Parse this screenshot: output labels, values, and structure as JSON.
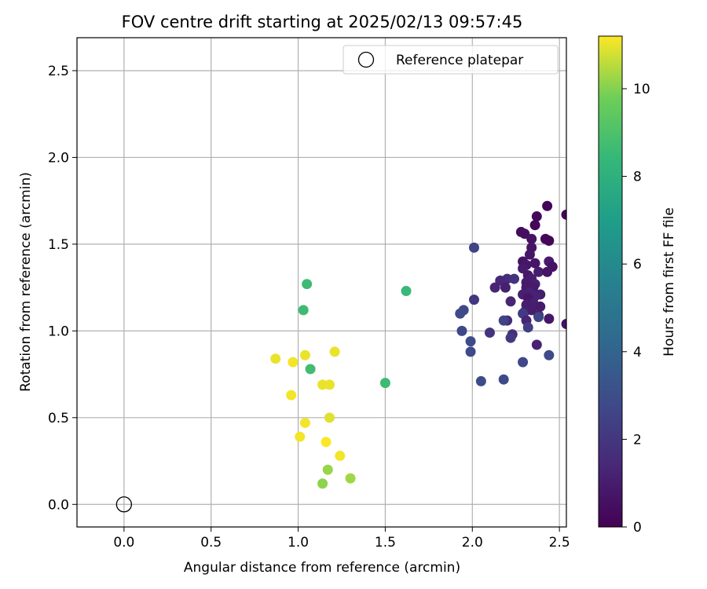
{
  "chart_data": {
    "type": "scatter",
    "title": "FOV centre drift starting at 2025/02/13 09:57:45",
    "xlabel": "Angular distance from reference (arcmin)",
    "ylabel": "Rotation from reference (arcmin)",
    "xlim": [
      -0.27,
      2.54
    ],
    "ylim": [
      -0.13,
      2.69
    ],
    "xticks": [
      "0.0",
      "0.5",
      "1.0",
      "1.5",
      "2.0",
      "2.5"
    ],
    "yticks": [
      "0.0",
      "0.5",
      "1.0",
      "1.5",
      "2.0",
      "2.5"
    ],
    "grid": true,
    "legend": {
      "placement": "top-right",
      "entries": [
        "Reference platepar"
      ]
    },
    "reference_point": {
      "x": 0.0,
      "y": 0.0,
      "marker": "open-circle"
    },
    "colorbar": {
      "label": "Hours from first FF file",
      "range": [
        0,
        11.2
      ],
      "ticks": [
        "0",
        "2",
        "4",
        "6",
        "8",
        "10"
      ],
      "colormap": "viridis"
    },
    "points": [
      {
        "x": 2.43,
        "y": 1.72,
        "c": 0.1
      },
      {
        "x": 2.54,
        "y": 1.67,
        "c": 0.2
      },
      {
        "x": 2.37,
        "y": 1.66,
        "c": 0.3
      },
      {
        "x": 2.36,
        "y": 1.61,
        "c": 0.2
      },
      {
        "x": 2.28,
        "y": 1.57,
        "c": 0.4
      },
      {
        "x": 2.3,
        "y": 1.56,
        "c": 0.5
      },
      {
        "x": 2.34,
        "y": 1.53,
        "c": 0.6
      },
      {
        "x": 2.42,
        "y": 1.53,
        "c": 0.3
      },
      {
        "x": 2.44,
        "y": 1.52,
        "c": 0.2
      },
      {
        "x": 2.34,
        "y": 1.48,
        "c": 0.7
      },
      {
        "x": 2.33,
        "y": 1.44,
        "c": 0.8
      },
      {
        "x": 2.29,
        "y": 1.4,
        "c": 0.6
      },
      {
        "x": 2.36,
        "y": 1.39,
        "c": 0.7
      },
      {
        "x": 2.44,
        "y": 1.4,
        "c": 0.9
      },
      {
        "x": 2.31,
        "y": 1.38,
        "c": 0.8
      },
      {
        "x": 2.46,
        "y": 1.37,
        "c": 0.6
      },
      {
        "x": 2.29,
        "y": 1.36,
        "c": 0.9
      },
      {
        "x": 2.38,
        "y": 1.34,
        "c": 1.0
      },
      {
        "x": 2.43,
        "y": 1.34,
        "c": 0.7
      },
      {
        "x": 2.32,
        "y": 1.32,
        "c": 0.8
      },
      {
        "x": 2.34,
        "y": 1.3,
        "c": 1.0
      },
      {
        "x": 2.2,
        "y": 1.3,
        "c": 1.6
      },
      {
        "x": 2.24,
        "y": 1.3,
        "c": 1.8
      },
      {
        "x": 2.16,
        "y": 1.29,
        "c": 1.4
      },
      {
        "x": 2.31,
        "y": 1.28,
        "c": 0.9
      },
      {
        "x": 2.36,
        "y": 1.27,
        "c": 1.1
      },
      {
        "x": 2.35,
        "y": 1.25,
        "c": 0.9
      },
      {
        "x": 2.31,
        "y": 1.25,
        "c": 0.9
      },
      {
        "x": 2.13,
        "y": 1.25,
        "c": 1.3
      },
      {
        "x": 2.19,
        "y": 1.25,
        "c": 1.1
      },
      {
        "x": 2.33,
        "y": 1.22,
        "c": 1.2
      },
      {
        "x": 2.39,
        "y": 1.21,
        "c": 1.0
      },
      {
        "x": 2.29,
        "y": 1.21,
        "c": 1.1
      },
      {
        "x": 2.36,
        "y": 1.2,
        "c": 1.2
      },
      {
        "x": 2.32,
        "y": 1.19,
        "c": 0.8
      },
      {
        "x": 2.01,
        "y": 1.18,
        "c": 2.0
      },
      {
        "x": 2.22,
        "y": 1.17,
        "c": 1.3
      },
      {
        "x": 2.35,
        "y": 1.16,
        "c": 1.1
      },
      {
        "x": 2.31,
        "y": 1.15,
        "c": 1.0
      },
      {
        "x": 2.39,
        "y": 1.14,
        "c": 0.9
      },
      {
        "x": 2.34,
        "y": 1.12,
        "c": 1.0
      },
      {
        "x": 1.95,
        "y": 1.12,
        "c": 2.7
      },
      {
        "x": 2.3,
        "y": 1.11,
        "c": 1.1
      },
      {
        "x": 1.93,
        "y": 1.1,
        "c": 2.8
      },
      {
        "x": 2.29,
        "y": 1.1,
        "c": 2.2
      },
      {
        "x": 2.38,
        "y": 1.09,
        "c": 1.0
      },
      {
        "x": 2.38,
        "y": 1.08,
        "c": 2.6
      },
      {
        "x": 2.44,
        "y": 1.07,
        "c": 0.8
      },
      {
        "x": 2.2,
        "y": 1.06,
        "c": 1.5
      },
      {
        "x": 2.18,
        "y": 1.06,
        "c": 2.5
      },
      {
        "x": 2.31,
        "y": 1.06,
        "c": 1.3
      },
      {
        "x": 2.32,
        "y": 1.02,
        "c": 2.4
      },
      {
        "x": 2.54,
        "y": 1.04,
        "c": 0.6
      },
      {
        "x": 1.94,
        "y": 1.0,
        "c": 2.7
      },
      {
        "x": 2.1,
        "y": 0.99,
        "c": 1.9
      },
      {
        "x": 2.23,
        "y": 0.98,
        "c": 1.7
      },
      {
        "x": 2.22,
        "y": 0.96,
        "c": 2.1
      },
      {
        "x": 1.99,
        "y": 0.94,
        "c": 2.9
      },
      {
        "x": 2.37,
        "y": 0.92,
        "c": 1.2
      },
      {
        "x": 1.99,
        "y": 0.88,
        "c": 2.8
      },
      {
        "x": 2.44,
        "y": 0.86,
        "c": 2.8
      },
      {
        "x": 2.29,
        "y": 0.82,
        "c": 2.7
      },
      {
        "x": 2.05,
        "y": 0.71,
        "c": 2.9
      },
      {
        "x": 2.18,
        "y": 0.72,
        "c": 2.8
      },
      {
        "x": 2.01,
        "y": 1.48,
        "c": 2.5
      },
      {
        "x": 1.05,
        "y": 1.27,
        "c": 8.6
      },
      {
        "x": 1.62,
        "y": 1.23,
        "c": 8.5
      },
      {
        "x": 1.03,
        "y": 1.12,
        "c": 8.6
      },
      {
        "x": 1.07,
        "y": 0.78,
        "c": 8.7
      },
      {
        "x": 1.5,
        "y": 0.7,
        "c": 8.6
      },
      {
        "x": 1.21,
        "y": 0.88,
        "c": 11.0
      },
      {
        "x": 1.04,
        "y": 0.86,
        "c": 11.0
      },
      {
        "x": 0.87,
        "y": 0.84,
        "c": 11.0
      },
      {
        "x": 0.97,
        "y": 0.82,
        "c": 11.1
      },
      {
        "x": 1.14,
        "y": 0.69,
        "c": 11.0
      },
      {
        "x": 1.18,
        "y": 0.69,
        "c": 11.0
      },
      {
        "x": 0.96,
        "y": 0.63,
        "c": 11.1
      },
      {
        "x": 1.18,
        "y": 0.5,
        "c": 10.9
      },
      {
        "x": 1.04,
        "y": 0.47,
        "c": 11.1
      },
      {
        "x": 1.01,
        "y": 0.39,
        "c": 11.1
      },
      {
        "x": 1.16,
        "y": 0.36,
        "c": 11.2
      },
      {
        "x": 1.24,
        "y": 0.28,
        "c": 11.1
      },
      {
        "x": 1.17,
        "y": 0.2,
        "c": 10.2
      },
      {
        "x": 1.3,
        "y": 0.15,
        "c": 10.3
      },
      {
        "x": 1.14,
        "y": 0.12,
        "c": 10.1
      }
    ]
  }
}
